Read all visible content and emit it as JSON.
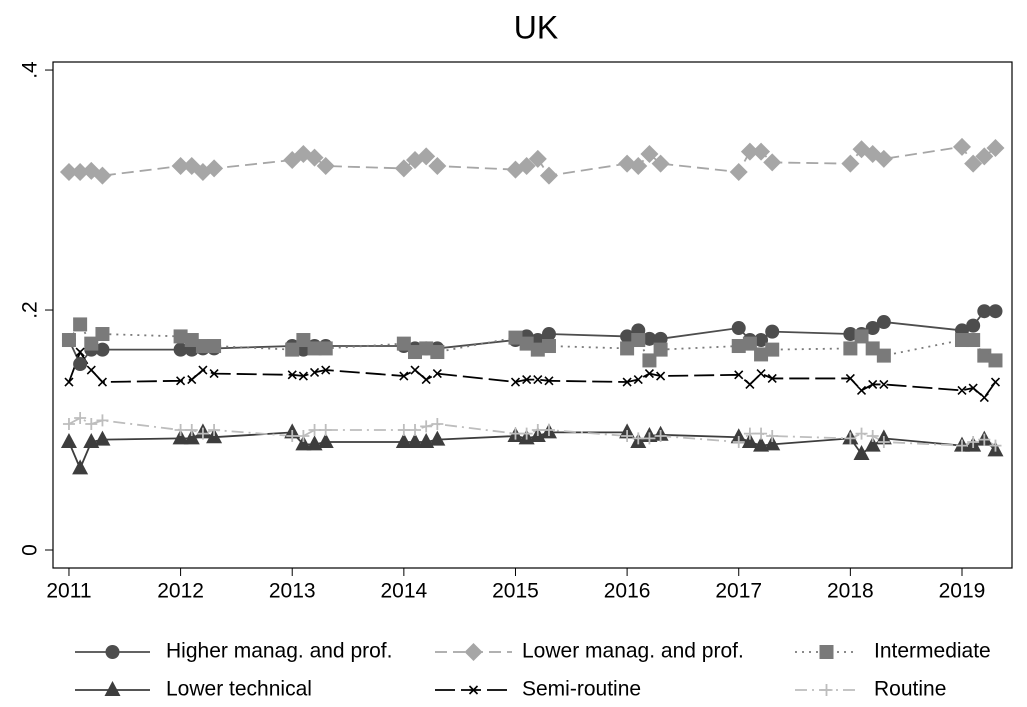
{
  "chart_data": {
    "type": "line",
    "title": "UK",
    "x": [
      2011,
      2011.1,
      2011.2,
      2011.3,
      2012,
      2012.1,
      2012.2,
      2012.3,
      2013,
      2013.1,
      2013.2,
      2013.3,
      2014,
      2014.1,
      2014.2,
      2014.3,
      2015,
      2015.1,
      2015.2,
      2015.3,
      2016,
      2016.1,
      2016.2,
      2016.3,
      2017,
      2017.1,
      2017.2,
      2017.3,
      2018,
      2018.1,
      2018.2,
      2018.3,
      2019,
      2019.1,
      2019.2,
      2019.3
    ],
    "xlim": [
      2010.857,
      2019.448
    ],
    "xticks": [
      2011,
      2012,
      2013,
      2014,
      2015,
      2016,
      2017,
      2018,
      2019
    ],
    "ylim": [
      -0.015,
      0.4067
    ],
    "yticks": [
      {
        "value": 0,
        "label": "0"
      },
      {
        "value": 0.2,
        "label": ".2"
      },
      {
        "value": 0.4,
        "label": ".4"
      }
    ],
    "legend": "bottom",
    "series": [
      {
        "name": "Higher manag. and prof.",
        "color": "#4d4d4d",
        "dash": "solid",
        "marker": "circle",
        "values": [
          0.175,
          0.155,
          0.167,
          0.167,
          0.167,
          0.167,
          0.168,
          0.168,
          0.17,
          0.167,
          0.17,
          0.17,
          0.17,
          0.168,
          0.168,
          0.168,
          0.175,
          0.178,
          0.175,
          0.18,
          0.178,
          0.183,
          0.176,
          0.176,
          0.185,
          0.175,
          0.175,
          0.182,
          0.18,
          0.18,
          0.185,
          0.19,
          0.183,
          0.187,
          0.199,
          0.199
        ]
      },
      {
        "name": "Lower manag. and prof.",
        "color": "#a6a6a6",
        "dash": "dash",
        "marker": "diamond",
        "values": [
          0.315,
          0.315,
          0.316,
          0.312,
          0.32,
          0.32,
          0.315,
          0.318,
          0.325,
          0.33,
          0.327,
          0.32,
          0.318,
          0.325,
          0.328,
          0.32,
          0.317,
          0.32,
          0.326,
          0.312,
          0.322,
          0.32,
          0.33,
          0.322,
          0.315,
          0.332,
          0.332,
          0.323,
          0.322,
          0.334,
          0.33,
          0.326,
          0.336,
          0.322,
          0.328,
          0.335
        ]
      },
      {
        "name": "Intermediate",
        "color": "#7a7a7a",
        "dash": "dot",
        "marker": "square",
        "values": [
          0.175,
          0.188,
          0.172,
          0.18,
          0.178,
          0.175,
          0.17,
          0.17,
          0.167,
          0.175,
          0.168,
          0.168,
          0.172,
          0.165,
          0.168,
          0.165,
          0.177,
          0.172,
          0.167,
          0.17,
          0.168,
          0.175,
          0.158,
          0.167,
          0.17,
          0.172,
          0.163,
          0.167,
          0.168,
          0.178,
          0.168,
          0.162,
          0.175,
          0.175,
          0.162,
          0.158
        ]
      },
      {
        "name": "Lower technical",
        "color": "#3d3d3d",
        "dash": "solid",
        "marker": "triangle",
        "values": [
          0.09,
          0.068,
          0.09,
          0.092,
          0.093,
          0.093,
          0.098,
          0.094,
          0.098,
          0.088,
          0.088,
          0.09,
          0.09,
          0.09,
          0.09,
          0.092,
          0.095,
          0.093,
          0.095,
          0.098,
          0.098,
          0.09,
          0.095,
          0.096,
          0.094,
          0.09,
          0.087,
          0.088,
          0.093,
          0.08,
          0.087,
          0.093,
          0.087,
          0.087,
          0.092,
          0.083
        ]
      },
      {
        "name": "Semi-routine",
        "color": "#000000",
        "dash": "longdash",
        "marker": "x",
        "values": [
          0.14,
          0.165,
          0.15,
          0.14,
          0.141,
          0.142,
          0.15,
          0.147,
          0.146,
          0.145,
          0.148,
          0.15,
          0.145,
          0.15,
          0.142,
          0.147,
          0.14,
          0.142,
          0.142,
          0.141,
          0.14,
          0.142,
          0.147,
          0.145,
          0.146,
          0.138,
          0.147,
          0.143,
          0.143,
          0.133,
          0.138,
          0.138,
          0.133,
          0.135,
          0.127,
          0.14
        ]
      },
      {
        "name": "Routine",
        "color": "#bdbdbd",
        "dash": "dashdot",
        "marker": "plus",
        "values": [
          0.105,
          0.11,
          0.105,
          0.108,
          0.1,
          0.1,
          0.097,
          0.1,
          0.095,
          0.095,
          0.1,
          0.1,
          0.1,
          0.1,
          0.103,
          0.105,
          0.097,
          0.097,
          0.1,
          0.1,
          0.095,
          0.093,
          0.093,
          0.095,
          0.09,
          0.097,
          0.097,
          0.095,
          0.093,
          0.097,
          0.095,
          0.09,
          0.087,
          0.09,
          0.092,
          0.087
        ]
      }
    ]
  }
}
